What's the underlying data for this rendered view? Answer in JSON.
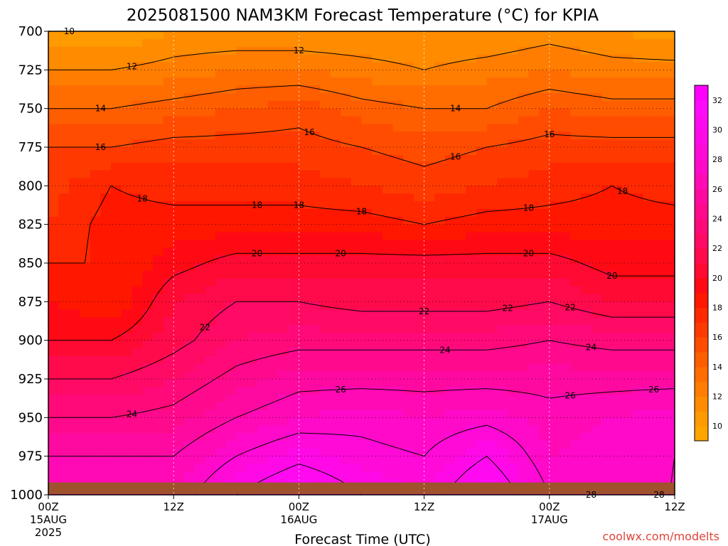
{
  "chart_data": {
    "type": "heatmap",
    "title": "2025081500 NAM3KM Forecast Temperature (°C) for KPIA",
    "xlabel": "Forecast Time (UTC)",
    "ylabel": "",
    "y_ticks": [
      "700",
      "725",
      "750",
      "775",
      "800",
      "825",
      "850",
      "875",
      "900",
      "925",
      "950",
      "975",
      "1000"
    ],
    "y_values": [
      700,
      725,
      750,
      775,
      800,
      825,
      850,
      875,
      900,
      925,
      950,
      975,
      1000
    ],
    "ylim": [
      1000,
      700
    ],
    "x_ticks": [
      {
        "hour": 0,
        "label": "00Z",
        "date": "15AUG",
        "year": "2025"
      },
      {
        "hour": 12,
        "label": "12Z",
        "date": "",
        "year": ""
      },
      {
        "hour": 24,
        "label": "00Z",
        "date": "16AUG",
        "year": ""
      },
      {
        "hour": 36,
        "label": "12Z",
        "date": "",
        "year": ""
      },
      {
        "hour": 48,
        "label": "00Z",
        "date": "17AUG",
        "year": ""
      },
      {
        "hour": 60,
        "label": "12Z",
        "date": "",
        "year": ""
      }
    ],
    "xlim_hours": [
      0,
      60
    ],
    "grid": true,
    "colorbar": {
      "ticks": [
        "10",
        "12",
        "14",
        "16",
        "18",
        "20",
        "22",
        "24",
        "26",
        "28",
        "30",
        "32"
      ],
      "levels": [
        9,
        10,
        11,
        12,
        13,
        14,
        15,
        16,
        17,
        18,
        19,
        20,
        21,
        22,
        23,
        24,
        25,
        26,
        27,
        28,
        29,
        30,
        31,
        32,
        33
      ],
      "colors": [
        "#ffa500",
        "#ff9a00",
        "#ff8c00",
        "#ff7d00",
        "#ff6d00",
        "#ff5e00",
        "#ff4c00",
        "#ff3a00",
        "#ff2800",
        "#ff1700",
        "#ff0a14",
        "#ff0a32",
        "#ff0a4b",
        "#ff0a64",
        "#ff0a78",
        "#ff0a8c",
        "#ff0aa0",
        "#ff0ab4",
        "#ff0ac8",
        "#ff0ad7",
        "#ff0ae6",
        "#ff0af0",
        "#ff0afa",
        "#ff00ff"
      ],
      "placement": "right"
    },
    "temperature_profiles": [
      {
        "hour": 0,
        "temps_at_pressure": [
          10,
          12,
          14,
          16,
          16.5,
          17,
          18,
          19,
          20,
          22,
          24,
          26,
          27
        ]
      },
      {
        "hour": 6,
        "temps_at_pressure": [
          10,
          12,
          14,
          16,
          18,
          18.5,
          18,
          18,
          20,
          22,
          24,
          26,
          27
        ]
      },
      {
        "hour": 12,
        "temps_at_pressure": [
          11,
          12.5,
          14.5,
          16.5,
          17.5,
          18.5,
          19.5,
          21,
          21.5,
          23,
          24.5,
          26,
          27
        ]
      },
      {
        "hour": 18,
        "temps_at_pressure": [
          11,
          13,
          15,
          16.5,
          17.5,
          18.5,
          20.5,
          22,
          23,
          24.5,
          26,
          28,
          30
        ]
      },
      {
        "hour": 24,
        "temps_at_pressure": [
          11,
          13,
          15.5,
          16.5,
          17.5,
          18.5,
          20.5,
          22,
          23.5,
          25.5,
          27,
          29.5,
          32
        ]
      },
      {
        "hour": 30,
        "temps_at_pressure": [
          11,
          12.5,
          14.5,
          16,
          17,
          18.5,
          20.5,
          21.5,
          23.5,
          25.5,
          27.5,
          28.5,
          30
        ]
      },
      {
        "hour": 36,
        "temps_at_pressure": [
          11,
          12,
          14,
          15.5,
          16.5,
          18,
          20.5,
          21.5,
          23.5,
          25.5,
          27,
          28,
          29
        ]
      },
      {
        "hour": 42,
        "temps_at_pressure": [
          11,
          12.5,
          14,
          16,
          17,
          18.5,
          20.5,
          21.5,
          23.5,
          25.5,
          27.5,
          30,
          32
        ]
      },
      {
        "hour": 48,
        "temps_at_pressure": [
          11.5,
          13,
          15,
          16.5,
          17.5,
          18.5,
          20.5,
          22,
          24,
          25.5,
          26.5,
          27,
          28
        ]
      },
      {
        "hour": 54,
        "temps_at_pressure": [
          11,
          12.5,
          14.5,
          16.5,
          18,
          18.5,
          19.5,
          21,
          23.5,
          25.5,
          27,
          27.5,
          28
        ]
      },
      {
        "hour": 60,
        "temps_at_pressure": [
          10.5,
          12.5,
          14.5,
          16.5,
          17.5,
          18.5,
          19.5,
          21,
          23.5,
          25.5,
          27.5,
          28,
          28
        ]
      }
    ],
    "contour_levels": [
      10,
      12,
      14,
      16,
      18,
      20,
      22,
      24,
      26,
      28,
      30
    ],
    "contour_label_values": [
      "10",
      "12",
      "12",
      "14",
      "14",
      "16",
      "16",
      "16",
      "16",
      "18",
      "18",
      "18",
      "18",
      "18",
      "18",
      "20",
      "20",
      "20",
      "20",
      "22",
      "22",
      "22",
      "24",
      "24",
      "24",
      "26",
      "26",
      "26",
      "28",
      "28",
      "28",
      "22"
    ],
    "credit": "coolwx.com/modelts",
    "ground_color": "#a0522d"
  }
}
